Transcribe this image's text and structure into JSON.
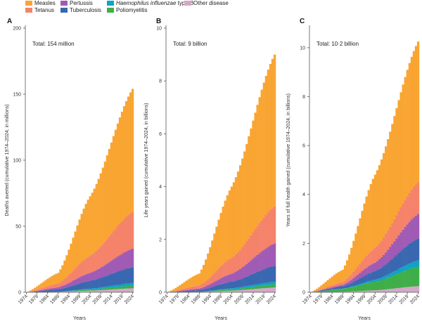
{
  "legend": [
    {
      "name": "Measles",
      "color": "#f9a533"
    },
    {
      "name": "Tetanus",
      "color": "#f5836a"
    },
    {
      "name": "Pertussis",
      "color": "#a05bb5"
    },
    {
      "name": "Tuberculosis",
      "color": "#3a68b0"
    },
    {
      "name": "Haemophilus influenzae type B",
      "name_italic": "Haemophilus influenzae",
      "name_rest": " type B",
      "color": "#0fa3c4"
    },
    {
      "name": "Poliomyelitis",
      "color": "#3fae49"
    },
    {
      "name": "Other disease",
      "color": "#d4a8c8"
    }
  ],
  "chart_data": [
    {
      "type": "area",
      "panel": "A",
      "total_label": "Total: 154 million",
      "ylabel": "Deaths averted (cumulative 1974–2024, in millions)",
      "xlabel": "Years",
      "ylim": [
        0,
        200
      ],
      "yticks": [
        0,
        50,
        100,
        150,
        200
      ],
      "ytick_labels": [
        "0",
        "50",
        "100",
        "150",
        "200"
      ],
      "xlim": [
        1974,
        2024
      ],
      "xticks": [
        1974,
        1979,
        1984,
        1989,
        1994,
        1999,
        2004,
        2009,
        2014,
        2019,
        2024
      ],
      "x": [
        1974,
        1989,
        2004,
        2024
      ],
      "series": [
        {
          "name": "Other disease",
          "values": [
            0,
            0.3,
            1.2,
            3
          ]
        },
        {
          "name": "Poliomyelitis",
          "values": [
            0,
            0.1,
            0.8,
            2
          ]
        },
        {
          "name": "Haemophilus influenzae type B",
          "values": [
            0,
            0,
            0.7,
            2
          ]
        },
        {
          "name": "Tuberculosis",
          "values": [
            0,
            1.8,
            6,
            12
          ]
        },
        {
          "name": "Pertussis",
          "values": [
            0,
            1.5,
            6,
            14
          ]
        },
        {
          "name": "Tetanus",
          "values": [
            0,
            3,
            13,
            28
          ]
        },
        {
          "name": "Measles",
          "values": [
            0,
            8,
            45,
            93
          ]
        }
      ]
    },
    {
      "type": "area",
      "panel": "B",
      "total_label": "Total: 9 billion",
      "ylabel": "Life years gained (cumulative 1974–2024, in billions)",
      "xlabel": "Years",
      "ylim": [
        0,
        10
      ],
      "yticks": [
        0,
        2,
        4,
        6,
        8,
        10
      ],
      "ytick_labels": [
        "0",
        "2",
        "4",
        "6",
        "8",
        "10"
      ],
      "xlim": [
        1974,
        2024
      ],
      "xticks": [
        1974,
        1979,
        1984,
        1989,
        1994,
        1999,
        2004,
        2009,
        2014,
        2019,
        2024
      ],
      "x": [
        1974,
        1989,
        2004,
        2024
      ],
      "series": [
        {
          "name": "Other disease",
          "values": [
            0,
            0.01,
            0.06,
            0.18
          ]
        },
        {
          "name": "Poliomyelitis",
          "values": [
            0,
            0.01,
            0.05,
            0.12
          ]
        },
        {
          "name": "Haemophilus influenzae type B",
          "values": [
            0,
            0,
            0.04,
            0.1
          ]
        },
        {
          "name": "Tuberculosis",
          "values": [
            0,
            0.06,
            0.25,
            0.6
          ]
        },
        {
          "name": "Pertussis",
          "values": [
            0,
            0.06,
            0.3,
            0.85
          ]
        },
        {
          "name": "Tetanus",
          "values": [
            0,
            0.12,
            0.6,
            1.4
          ]
        },
        {
          "name": "Measles",
          "values": [
            0,
            0.45,
            2.7,
            5.75
          ]
        }
      ]
    },
    {
      "type": "area",
      "panel": "C",
      "total_label": "Total: 10·2 billion",
      "ylabel": "Years of full health gained (cumulative 1974–2024, in billions)",
      "xlabel": "Years",
      "ylim": [
        0,
        10.8
      ],
      "yticks": [
        0,
        2,
        4,
        6,
        8,
        10
      ],
      "ytick_labels": [
        "0",
        "2",
        "4",
        "6",
        "8",
        "10"
      ],
      "xlim": [
        1974,
        2024
      ],
      "xticks": [
        1974,
        1979,
        1984,
        1989,
        1994,
        1999,
        2004,
        2009,
        2014,
        2019,
        2024
      ],
      "x": [
        1974,
        1989,
        2004,
        2024
      ],
      "series": [
        {
          "name": "Other disease",
          "values": [
            0,
            0.02,
            0.08,
            0.25
          ]
        },
        {
          "name": "Poliomyelitis",
          "values": [
            0,
            0.12,
            0.35,
            0.8
          ]
        },
        {
          "name": "Haemophilus influenzae type B",
          "values": [
            0,
            0.01,
            0.08,
            0.25
          ]
        },
        {
          "name": "Tuberculosis",
          "values": [
            0,
            0.09,
            0.35,
            0.9
          ]
        },
        {
          "name": "Pertussis",
          "values": [
            0,
            0.06,
            0.35,
            1.0
          ]
        },
        {
          "name": "Tetanus",
          "values": [
            0,
            0.12,
            0.6,
            1.3
          ]
        },
        {
          "name": "Measles",
          "values": [
            0,
            0.5,
            3.0,
            5.75
          ]
        }
      ]
    }
  ]
}
